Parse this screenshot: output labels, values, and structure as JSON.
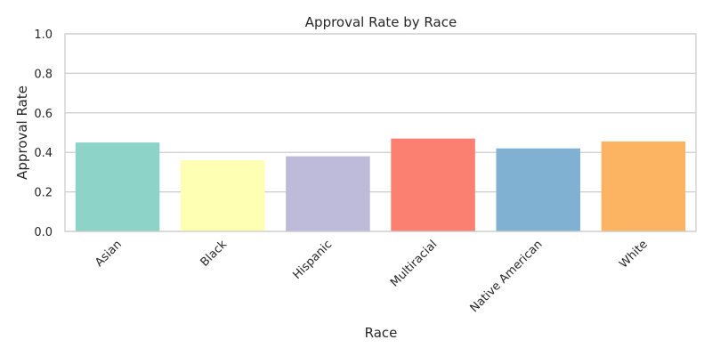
{
  "chart_data": {
    "type": "bar",
    "title": "Approval Rate by Race",
    "xlabel": "Race",
    "ylabel": "Approval Rate",
    "categories": [
      "Asian",
      "Black",
      "Hispanic",
      "Multiracial",
      "Native American",
      "White"
    ],
    "values": [
      0.45,
      0.36,
      0.38,
      0.47,
      0.42,
      0.455
    ],
    "colors": [
      "#8dd3c7",
      "#ffffb3",
      "#bebada",
      "#fb8072",
      "#80b1d3",
      "#fdb462"
    ],
    "ylim": [
      0,
      1.0
    ],
    "yticks": [
      "0.0",
      "0.2",
      "0.4",
      "0.6",
      "0.8",
      "1.0"
    ],
    "grid": true,
    "legend": "none"
  }
}
